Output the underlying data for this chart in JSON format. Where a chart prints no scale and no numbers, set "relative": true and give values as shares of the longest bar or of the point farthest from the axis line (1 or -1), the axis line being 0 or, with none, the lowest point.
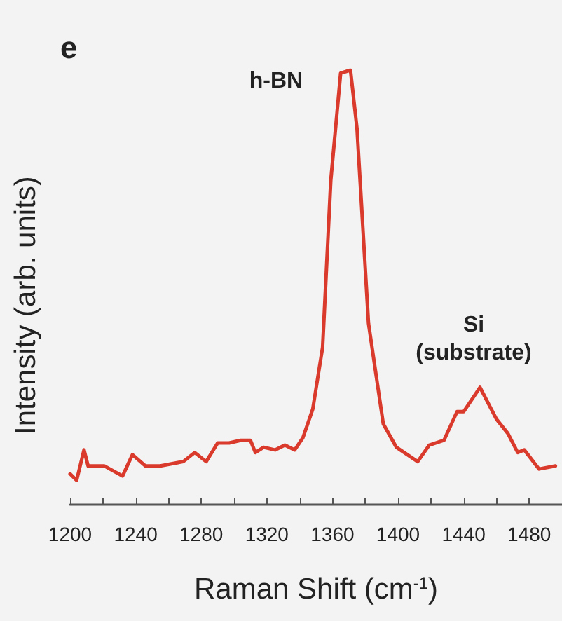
{
  "chart_data": {
    "type": "line",
    "title": "e",
    "xlabel": "Raman Shift (cm$^{-1}$)",
    "ylabel": "Intensity (arb. units)",
    "relative": true,
    "xlim": [
      1200,
      1500
    ],
    "xticks": [
      1200,
      {
        "value": 1220,
        "label": null
      },
      1240,
      {
        "value": 1260,
        "label": null
      },
      1280,
      {
        "value": 1300,
        "label": null
      },
      1320,
      {
        "value": 1340,
        "label": null
      },
      1360,
      {
        "value": 1380,
        "label": null
      },
      1400,
      {
        "value": 1420,
        "label": null
      },
      1440,
      {
        "value": 1460,
        "label": null
      },
      1480
    ],
    "grid": false,
    "marker": "none",
    "line_style": "solid",
    "annotations": [
      "h-BN",
      "Si\n(substrate)"
    ],
    "series": [
      {
        "color": "#d93a2b",
        "x": [
          1200,
          1204,
          1208.5,
          1211,
          1221,
          1232,
          1238,
          1246,
          1255,
          1269,
          1276,
          1283,
          1290,
          1297,
          1304,
          1310,
          1313,
          1318,
          1325,
          1331,
          1337,
          1342,
          1348,
          1354,
          1359,
          1365,
          1371,
          1375,
          1382,
          1391,
          1399,
          1412,
          1419,
          1428,
          1436,
          1440,
          1450,
          1460,
          1467,
          1473,
          1477,
          1486,
          1496
        ],
        "values": [
          0.071,
          0.056,
          0.126,
          0.089,
          0.089,
          0.066,
          0.115,
          0.089,
          0.089,
          0.099,
          0.12,
          0.099,
          0.142,
          0.142,
          0.148,
          0.148,
          0.12,
          0.132,
          0.126,
          0.137,
          0.126,
          0.154,
          0.22,
          0.362,
          0.746,
          0.993,
          1.0,
          0.865,
          0.417,
          0.186,
          0.132,
          0.099,
          0.137,
          0.148,
          0.214,
          0.214,
          0.27,
          0.197,
          0.164,
          0.12,
          0.126,
          0.082,
          0.089
        ]
      }
    ]
  }
}
